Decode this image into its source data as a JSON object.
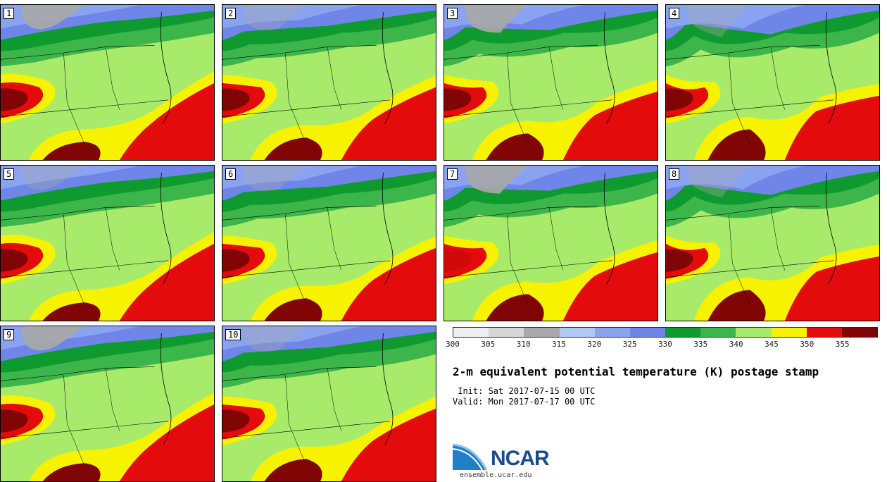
{
  "panels": [
    {
      "label": "1"
    },
    {
      "label": "2"
    },
    {
      "label": "3"
    },
    {
      "label": "4"
    },
    {
      "label": "5"
    },
    {
      "label": "6"
    },
    {
      "label": "7"
    },
    {
      "label": "8"
    },
    {
      "label": "9"
    },
    {
      "label": "10"
    }
  ],
  "colorbar": {
    "ticks": [
      "300",
      "305",
      "310",
      "315",
      "320",
      "325",
      "330",
      "335",
      "340",
      "345",
      "350",
      "355"
    ],
    "colors": [
      "#efefef",
      "#d6d6d6",
      "#a9a9a9",
      "#b4c8f5",
      "#8aa3f0",
      "#6f86e8",
      "#0e9a2e",
      "#3cb54a",
      "#a8ea6a",
      "#f7f200",
      "#e30b0b",
      "#820505"
    ]
  },
  "title": "2-m equivalent potential temperature (K) postage stamp",
  "init": " Init: Sat 2017-07-15 00 UTC",
  "valid": "Valid: Mon 2017-07-17 00 UTC",
  "logo": {
    "text": "NCAR",
    "url": "ensemble.ucar.edu"
  }
}
